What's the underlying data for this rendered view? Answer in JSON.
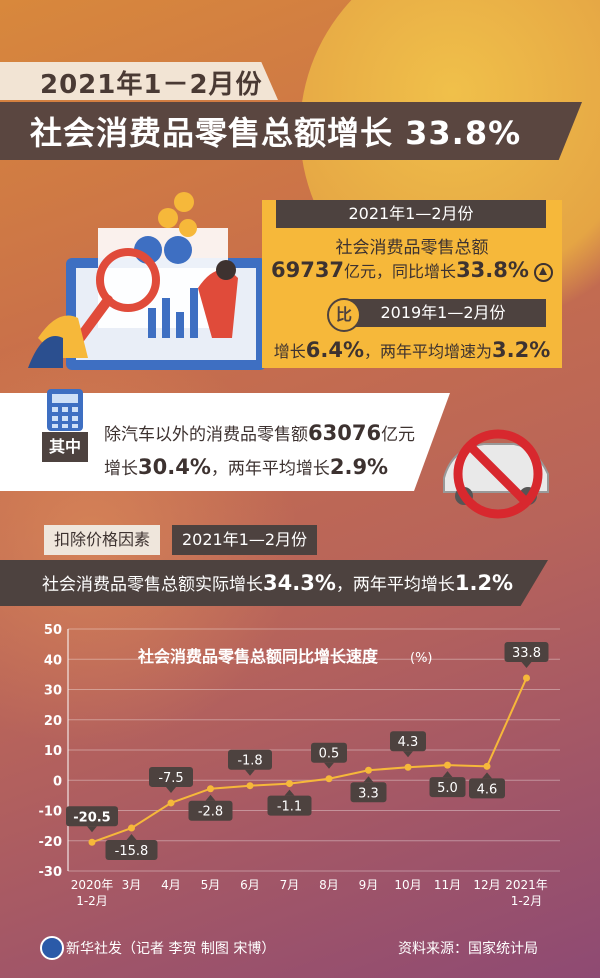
{
  "header": {
    "period": "2021年1－2月份",
    "headline": "社会消费品零售总额增长 33.8%"
  },
  "summary": {
    "period_bar": "2021年1—2月份",
    "line1": "社会消费品零售总额",
    "amount": "69737",
    "amount_unit": "亿元，同比增长",
    "growth": "33.8%",
    "compare_badge": "比",
    "compare_period": "2019年1—2月份",
    "growth2_prefix": "增长",
    "growth2": "6.4%",
    "avg_text": "，两年平均增速为",
    "avg": "3.2%"
  },
  "ex_auto": {
    "label": "其中",
    "line1_text": "除汽车以外的消费品零售额",
    "line1_value": "63076",
    "line1_unit": "亿元",
    "line2_prefix": "增长",
    "line2_value": "30.4%",
    "line2_mid": "，两年平均增长",
    "line2_avg": "2.9%"
  },
  "real": {
    "tag": "扣除价格因素",
    "period": "2021年1—2月份",
    "text": "社会消费品零售总额实际增长",
    "value": "34.3%",
    "mid": "，两年平均增长",
    "avg": "1.2%"
  },
  "chart_data": {
    "type": "line",
    "title": "社会消费品零售总额同比增长速度",
    "unit": "(%)",
    "categories": [
      "2020年\n1-2月",
      "3月",
      "4月",
      "5月",
      "6月",
      "7月",
      "8月",
      "9月",
      "10月",
      "11月",
      "12月",
      "2021年\n1-2月"
    ],
    "values": [
      -20.5,
      -15.8,
      -7.5,
      -2.8,
      -1.8,
      -1.1,
      0.5,
      3.3,
      4.3,
      5.0,
      4.6,
      33.8
    ],
    "data_labels": [
      "-20.5",
      "-15.8",
      "-7.5",
      "-2.8",
      "-1.8",
      "-1.1",
      "0.5",
      "3.3",
      "4.3",
      "5.0",
      "4.6",
      "33.8"
    ],
    "label_pos": [
      "above",
      "below",
      "above",
      "below",
      "above",
      "below",
      "above",
      "below",
      "above",
      "below",
      "below",
      "above"
    ],
    "yticks": [
      50,
      40,
      30,
      20,
      10,
      0,
      -10,
      -20,
      -30
    ],
    "ylim": [
      -30,
      50
    ],
    "line_color": "#f6b83a",
    "label_bg": "#4d423f"
  },
  "footer": {
    "left": "新华社发（记者 李贺  制图 宋博）",
    "right": "资料来源：国家统计局"
  }
}
